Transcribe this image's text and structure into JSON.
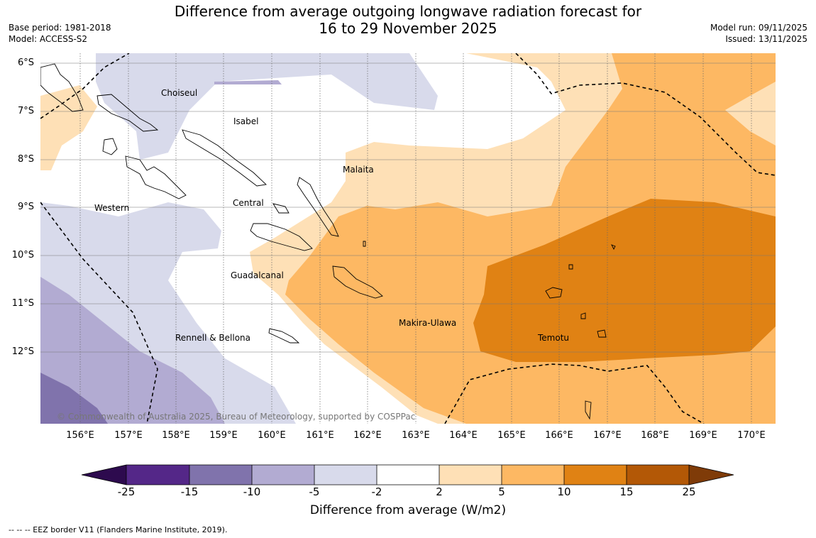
{
  "title_line1": "Difference from average outgoing longwave radiation forecast for",
  "title_line2": "16 to 29 November 2025",
  "base_period": "Base period: 1981-2018",
  "model": "Model: ACCESS-S2",
  "model_run": "Model run: 09/11/2025",
  "issued": "Issued: 13/11/2025",
  "lon_labels": [
    "156°E",
    "157°E",
    "158°E",
    "159°E",
    "160°E",
    "161°E",
    "162°E",
    "163°E",
    "164°E",
    "165°E",
    "166°E",
    "167°E",
    "168°E",
    "169°E",
    "170°E"
  ],
  "lat_labels": [
    "6°S",
    "7°S",
    "8°S",
    "9°S",
    "10°S",
    "11°S",
    "12°S"
  ],
  "regions": {
    "choiseul": "Choiseul",
    "isabel": "Isabel",
    "malaita": "Malaita",
    "western": "Western",
    "central": "Central",
    "guadalcanal": "Guadalcanal",
    "makira": "Makira-Ulawa",
    "rennell": "Rennell & Bellona",
    "temotu": "Temotu"
  },
  "copyright": "© Commonwealth of Australia 2025, Bureau of Meteorology, supported by COSPPac",
  "colorbar": {
    "labels": [
      "-25",
      "-15",
      "-10",
      "-5",
      "-2",
      "2",
      "5",
      "10",
      "15",
      "25"
    ],
    "colors": {
      "below_min": "#2d0a4e",
      "c1": "#542788",
      "c2": "#8073ac",
      "c3": "#b2abd2",
      "c4": "#d8daeb",
      "c5": "#ffffff",
      "c6": "#fee0b6",
      "c7": "#fdb863",
      "c8": "#e08214",
      "c9": "#b35806",
      "above_max": "#7f3b08"
    },
    "title": "Difference from average (W/m2)"
  },
  "eez_note": "--  --  -- EEZ border V11 (Flanders Marine Institute, 2019)."
}
